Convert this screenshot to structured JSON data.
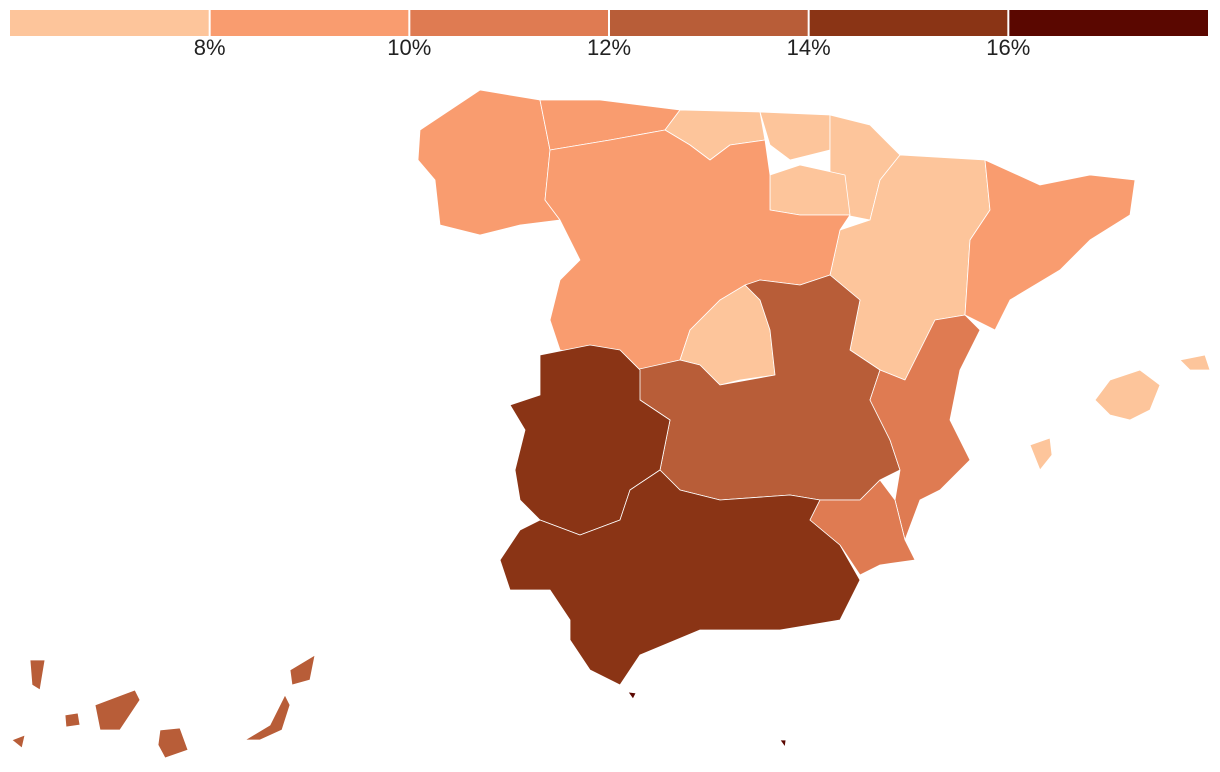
{
  "chart_data": {
    "type": "choropleth",
    "xlim": [
      6,
      18
    ],
    "xticks": [
      {
        "value": 8,
        "label": "8%"
      },
      {
        "value": 10,
        "label": "10%"
      },
      {
        "value": 12,
        "label": "12%"
      },
      {
        "value": 14,
        "label": "14%"
      },
      {
        "value": 16,
        "label": "16%"
      }
    ],
    "colors": [
      "#fdc59b",
      "#f99c6f",
      "#df7b52",
      "#b85d38",
      "#8a3415",
      "#5a0700"
    ],
    "values": [
      9,
      9,
      7,
      7,
      7,
      7,
      7,
      9,
      9,
      7,
      13,
      15,
      15,
      11,
      11,
      7,
      13,
      17
    ]
  }
}
